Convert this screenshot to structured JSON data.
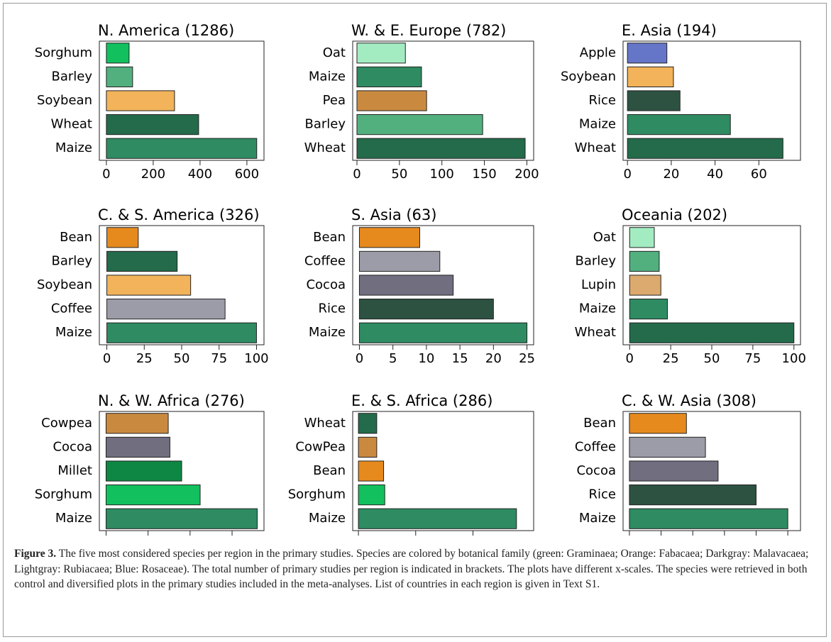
{
  "chart_data": [
    {
      "type": "barh",
      "title": "N. America (1286)",
      "categories": [
        "Sorghum",
        "Barley",
        "Soybean",
        "Wheat",
        "Maize"
      ],
      "values": [
        97,
        112,
        291,
        394,
        642
      ],
      "colors": [
        "#12c05e",
        "#52b07f",
        "#f2b35a",
        "#236b4b",
        "#2e8b62"
      ],
      "xlim": [
        -30,
        673
      ],
      "xticks": [
        0,
        200,
        400,
        600
      ]
    },
    {
      "type": "barh",
      "title": "W. & E. Europe (782)",
      "categories": [
        "Oat",
        "Maize",
        "Pea",
        "Barley",
        "Wheat"
      ],
      "values": [
        57,
        76,
        82,
        148,
        198
      ],
      "colors": [
        "#a3ecc2",
        "#2e8b62",
        "#c98a40",
        "#52b07f",
        "#236b4b"
      ],
      "xlim": [
        -5,
        208
      ],
      "xticks": [
        0,
        50,
        100,
        150,
        200
      ]
    },
    {
      "type": "barh",
      "title": "E. Asia (194)",
      "categories": [
        "Apple",
        "Soybean",
        "Rice",
        "Maize",
        "Wheat"
      ],
      "values": [
        18,
        21,
        24,
        47,
        71
      ],
      "colors": [
        "#6576c9",
        "#f2b35a",
        "#2d5242",
        "#2e8b62",
        "#236b4b"
      ],
      "xlim": [
        -2,
        79
      ],
      "xticks": [
        0,
        20,
        40,
        60
      ]
    },
    {
      "type": "barh",
      "title": "C. & S. America (326)",
      "categories": [
        "Bean",
        "Barley",
        "Soybean",
        "Coffee",
        "Maize"
      ],
      "values": [
        21,
        47,
        56,
        79,
        100
      ],
      "colors": [
        "#e68a1e",
        "#236b4b",
        "#f2b35a",
        "#9c9ca8",
        "#2e8b62"
      ],
      "xlim": [
        -5,
        105
      ],
      "xticks": [
        0,
        25,
        50,
        75,
        100
      ]
    },
    {
      "type": "barh",
      "title": "S. Asia (63)",
      "categories": [
        "Bean",
        "Coffee",
        "Cocoa",
        "Rice",
        "Maize"
      ],
      "values": [
        9,
        12,
        14,
        20,
        25
      ],
      "colors": [
        "#e68a1e",
        "#9c9ca8",
        "#716e80",
        "#2d5242",
        "#2e8b62"
      ],
      "xlim": [
        -1,
        26
      ],
      "xticks": [
        0,
        5,
        10,
        15,
        20,
        25
      ]
    },
    {
      "type": "barh",
      "title": "Oceania (202)",
      "categories": [
        "Oat",
        "Barley",
        "Lupin",
        "Maize",
        "Wheat"
      ],
      "values": [
        15,
        18,
        19,
        23,
        100
      ],
      "colors": [
        "#a3ecc2",
        "#52b07f",
        "#dcaa6e",
        "#2e8b62",
        "#236b4b"
      ],
      "xlim": [
        -4,
        104
      ],
      "xticks": [
        0,
        25,
        50,
        75,
        100
      ]
    },
    {
      "type": "barh",
      "title": "N. & W. Africa (276)",
      "categories": [
        "Cowpea",
        "Cocoa",
        "Millet",
        "Sorghum",
        "Maize"
      ],
      "values": [
        37,
        38,
        45,
        56,
        90
      ],
      "colors": [
        "#c98a40",
        "#716e80",
        "#0e8745",
        "#12c05e",
        "#2e8b62"
      ],
      "xlim": [
        -4,
        94
      ],
      "xticks": [
        0,
        25,
        50,
        75
      ]
    },
    {
      "type": "barh",
      "title": "E. & S. Africa (286)",
      "categories": [
        "Wheat",
        "CowPea",
        "Bean",
        "Sorghum",
        "Maize"
      ],
      "values": [
        16,
        16,
        22,
        23,
        138
      ],
      "colors": [
        "#236b4b",
        "#c98a40",
        "#e68a1e",
        "#12c05e",
        "#2e8b62"
      ],
      "xlim": [
        -5,
        153
      ],
      "xticks": [
        0,
        50,
        100
      ]
    },
    {
      "type": "barh",
      "title": "C. & W. Asia (308)",
      "categories": [
        "Bean",
        "Coffee",
        "Cocoa",
        "Rice",
        "Maize"
      ],
      "values": [
        9,
        12,
        14,
        20,
        25
      ],
      "colors": [
        "#e68a1e",
        "#9c9ca8",
        "#716e80",
        "#2d5242",
        "#2e8b62"
      ],
      "xlim": [
        -1,
        27
      ],
      "xticks": [
        0,
        5,
        10,
        15,
        20,
        25
      ]
    }
  ],
  "caption": {
    "label": "Figure 3.",
    "text": "The five most considered species per region in the primary studies. Species are colored by botanical family (green: Graminaea; Orange: Fabacaea; Darkgray: Malavacaea; Lightgray: Rubiacaea; Blue: Rosaceae). The total number of primary studies per region is indicated in brackets. The plots have different x-scales. The species were retrieved in both control and diversified plots in the primary studies included in the meta-analyses. List of countries in each region is given in Text S1."
  }
}
